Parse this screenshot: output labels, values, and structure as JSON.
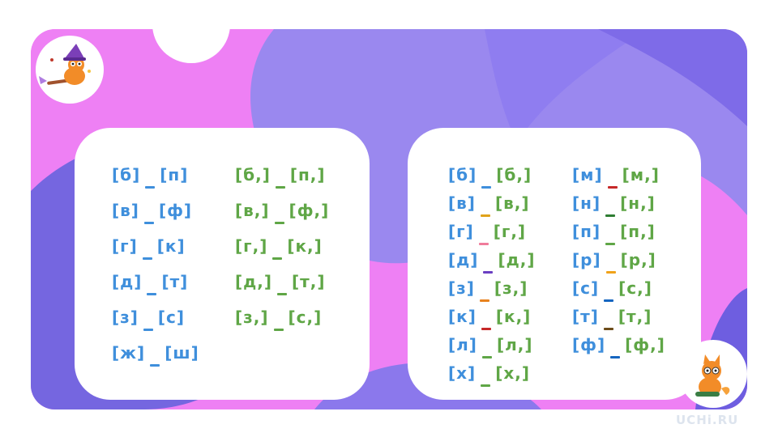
{
  "watermark": "UCHi.RU",
  "colors": {
    "pink": "#ee80f4",
    "lavender": "#9a88ef",
    "violet": "#6e5ee0",
    "blue_text": "#3f8fdc",
    "green_text": "#5fa646"
  },
  "left_card": {
    "column_1": [
      {
        "left": "[б]",
        "right": "[п]"
      },
      {
        "left": "[в]",
        "right": "[ф]"
      },
      {
        "left": "[г]",
        "right": "[к]"
      },
      {
        "left": "[д]",
        "right": "[т]"
      },
      {
        "left": "[з]",
        "right": "[с]"
      },
      {
        "left": "[ж]",
        "right": "[ш]"
      }
    ],
    "column_2": [
      {
        "left": "[б,]",
        "right": "[п,]"
      },
      {
        "left": "[в,]",
        "right": "[ф,]"
      },
      {
        "left": "[г,]",
        "right": "[к,]"
      },
      {
        "left": "[д,]",
        "right": "[т,]"
      },
      {
        "left": "[з,]",
        "right": "[с,]"
      }
    ]
  },
  "right_card": {
    "column_1": [
      {
        "left": "[б]",
        "right": "[б,]",
        "dash_color": "#3f8fdc"
      },
      {
        "left": "[в]",
        "right": "[в,]",
        "dash_color": "#e0a21a"
      },
      {
        "left": "[г]",
        "right": "[г,]",
        "dash_color": "#f07b9b"
      },
      {
        "left": "[д]",
        "right": "[д,]",
        "dash_color": "#6a3fc2"
      },
      {
        "left": "[з]",
        "right": "[з,]",
        "dash_color": "#e8821e"
      },
      {
        "left": "[к]",
        "right": "[к,]",
        "dash_color": "#c62828"
      },
      {
        "left": "[л]",
        "right": "[л,]",
        "dash_color": "#5fa646"
      },
      {
        "left": "[х]",
        "right": "[х,]",
        "dash_color": "#5fa646"
      }
    ],
    "column_2": [
      {
        "left": "[м]",
        "right": "[м,]",
        "dash_color": "#c62828"
      },
      {
        "left": "[н]",
        "right": "[н,]",
        "dash_color": "#2e7d32"
      },
      {
        "left": "[п]",
        "right": "[п,]",
        "dash_color": "#5fa646"
      },
      {
        "left": "[р]",
        "right": "[р,]",
        "dash_color": "#f0a21a"
      },
      {
        "left": "[с]",
        "right": "[с,]",
        "dash_color": "#1565c0"
      },
      {
        "left": "[т]",
        "right": "[т,]",
        "dash_color": "#6d4c1a"
      },
      {
        "left": "[ф]",
        "right": "[ф,]",
        "dash_color": "#1565c0"
      }
    ]
  }
}
